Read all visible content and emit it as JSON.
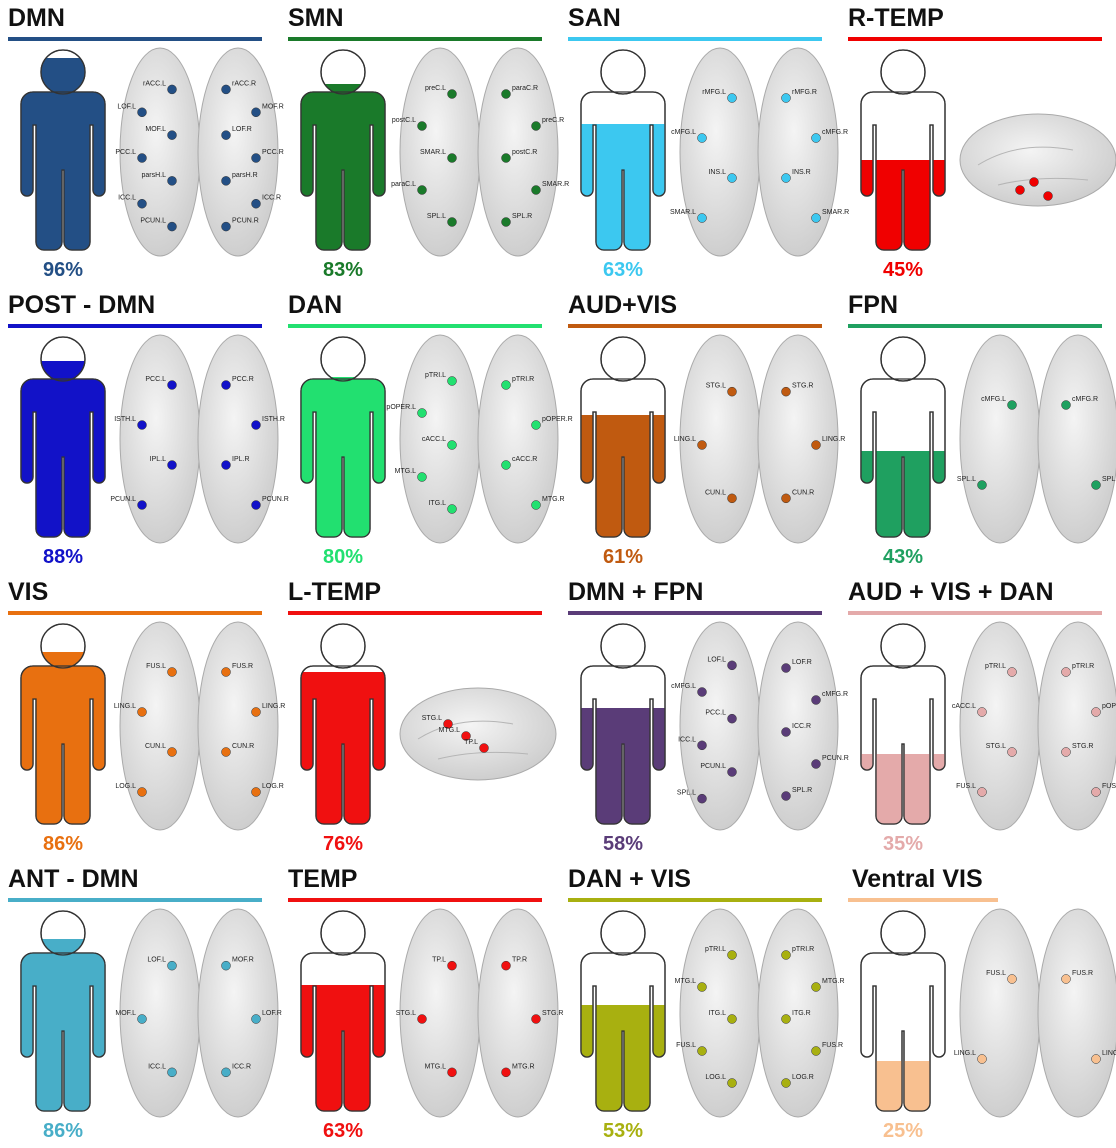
{
  "chart_data": [
    {
      "type": "person",
      "title": "DMN",
      "color": "#234f85",
      "values": [
        96
      ],
      "value_labels": [
        "96%"
      ],
      "ylim": [
        0,
        100
      ],
      "nodes": [
        "rACC.L",
        "rACC.R",
        "LOF.L",
        "MOF.L",
        "MOF.R",
        "LOF.R",
        "PCC.L",
        "PCC.R",
        "parsH.L",
        "parsH.R",
        "ICC.L",
        "ICC.R",
        "PCUN.L",
        "PCUN.R"
      ]
    },
    {
      "type": "person",
      "title": "SMN",
      "color": "#1a7a2a",
      "values": [
        83
      ],
      "value_labels": [
        "83%"
      ],
      "ylim": [
        0,
        100
      ],
      "nodes": [
        "preC.L",
        "postC.L",
        "SMAR.L",
        "paraC.L",
        "paraC.R",
        "preC.R",
        "postC.R",
        "SMAR.R",
        "SPL.L",
        "SPL.R"
      ]
    },
    {
      "type": "person",
      "title": "SAN",
      "color": "#3cc8f0",
      "values": [
        63
      ],
      "value_labels": [
        "63%"
      ],
      "ylim": [
        0,
        100
      ],
      "nodes": [
        "rMFG.L",
        "rMFG.R",
        "cMFG.L",
        "cMFG.R",
        "INS.L",
        "INS.R",
        "SMAR.L",
        "SMAR.R"
      ]
    },
    {
      "type": "person",
      "title": "R-TEMP",
      "color": "#f00000",
      "values": [
        45
      ],
      "value_labels": [
        "45%"
      ],
      "ylim": [
        0,
        100
      ],
      "view": "lateral"
    },
    {
      "type": "person",
      "title": "POST - DMN",
      "color": "#1212c8",
      "values": [
        88
      ],
      "value_labels": [
        "88%"
      ],
      "ylim": [
        0,
        100
      ],
      "nodes": [
        "PCC.L",
        "PCC.R",
        "ISTH.L",
        "ISTH.R",
        "IPL.L",
        "IPL.R",
        "PCUN.L",
        "PCUN.R"
      ]
    },
    {
      "type": "person",
      "title": "DAN",
      "color": "#22e070",
      "values": [
        80
      ],
      "value_labels": [
        "80%"
      ],
      "ylim": [
        0,
        100
      ],
      "nodes": [
        "pTRI.L",
        "pTRI.R",
        "pOPER.L",
        "pOPER.R",
        "cACC.L",
        "cACC.R",
        "MTG.L",
        "MTG.R",
        "ITG.L"
      ]
    },
    {
      "type": "person",
      "title": "AUD+VIS",
      "color": "#c05a10",
      "values": [
        61
      ],
      "value_labels": [
        "61%"
      ],
      "ylim": [
        0,
        100
      ],
      "nodes": [
        "STG.L",
        "STG.R",
        "LING.L",
        "LING.R",
        "CUN.L",
        "CUN.R"
      ]
    },
    {
      "type": "person",
      "title": "FPN",
      "color": "#1fa060",
      "values": [
        43
      ],
      "value_labels": [
        "43%"
      ],
      "ylim": [
        0,
        100
      ],
      "nodes": [
        "cMFG.L",
        "cMFG.R",
        "SPL.L",
        "SPL.R"
      ]
    },
    {
      "type": "person",
      "title": "VIS",
      "color": "#e87010",
      "values": [
        86
      ],
      "value_labels": [
        "86%"
      ],
      "ylim": [
        0,
        100
      ],
      "nodes": [
        "FUS.L",
        "FUS.R",
        "LING.L",
        "LING.R",
        "CUN.L",
        "CUN.R",
        "LOG.L",
        "LOG.R"
      ]
    },
    {
      "type": "person",
      "title": "L-TEMP",
      "color": "#f01010",
      "values": [
        76
      ],
      "value_labels": [
        "76%"
      ],
      "ylim": [
        0,
        100
      ],
      "view": "lateral",
      "nodes": [
        "STG.L",
        "MTG.L",
        "TP.L"
      ]
    },
    {
      "type": "person",
      "title": "DMN + FPN",
      "color": "#5a3c78",
      "values": [
        58
      ],
      "value_labels": [
        "58%"
      ],
      "ylim": [
        0,
        100
      ],
      "nodes": [
        "LOF.L",
        "LOF.R",
        "cMFG.L",
        "cMFG.R",
        "PCC.L",
        "ICC.L",
        "ICC.R",
        "PCUN.L",
        "PCUN.R",
        "SPL.L",
        "SPL.R"
      ]
    },
    {
      "type": "person",
      "title": "AUD + VIS + DAN",
      "color": "#e4aaaa",
      "values": [
        35
      ],
      "value_labels": [
        "35%"
      ],
      "ylim": [
        0,
        100
      ],
      "nodes": [
        "pTRI.L",
        "cACC.L",
        "pTRI.R",
        "pOPER.R",
        "STG.L",
        "STG.R",
        "FUS.L",
        "FUS.R"
      ]
    },
    {
      "type": "person",
      "title": "ANT - DMN",
      "color": "#48aec8",
      "values": [
        86
      ],
      "value_labels": [
        "86%"
      ],
      "ylim": [
        0,
        100
      ],
      "nodes": [
        "LOF.L",
        "MOF.L",
        "MOF.R",
        "LOF.R",
        "ICC.L",
        "ICC.R"
      ]
    },
    {
      "type": "person",
      "title": "TEMP",
      "color": "#f01010",
      "values": [
        63
      ],
      "value_labels": [
        "63%"
      ],
      "ylim": [
        0,
        100
      ],
      "nodes": [
        "TP.L",
        "TP.R",
        "STG.L",
        "STG.R",
        "MTG.L",
        "MTG.R"
      ]
    },
    {
      "type": "person",
      "title": "DAN + VIS",
      "color": "#a8b010",
      "values": [
        53
      ],
      "value_labels": [
        "53%"
      ],
      "ylim": [
        0,
        100
      ],
      "nodes": [
        "pTRI.L",
        "pTRI.R",
        "MTG.L",
        "MTG.R",
        "ITG.L",
        "ITG.R",
        "FUS.L",
        "FUS.R",
        "LOG.L",
        "LOG.R"
      ]
    },
    {
      "type": "person",
      "title": "Ventral VIS",
      "color": "#f8c090",
      "values": [
        25
      ],
      "value_labels": [
        "25%"
      ],
      "ylim": [
        0,
        100
      ],
      "nodes": [
        "FUS.L",
        "FUS.R",
        "LING.L",
        "LING.R"
      ]
    }
  ]
}
